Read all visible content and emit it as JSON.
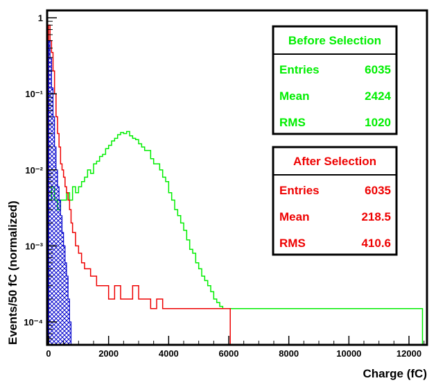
{
  "chart_data": {
    "type": "histogram",
    "xlabel": "Charge (fC)",
    "ylabel": "Events/50 fC (normalized)",
    "xlim": [
      0,
      12600
    ],
    "ylim": [
      5e-05,
      1.25
    ],
    "yscale": "log",
    "bin_width": 50,
    "grid": false,
    "x_ticks": [
      0,
      2000,
      4000,
      6000,
      8000,
      10000,
      12000
    ],
    "x_tick_labels": [
      "0",
      "2000",
      "4000",
      "6000",
      "8000",
      "10000",
      "12000"
    ],
    "y_ticks": [
      0.0001,
      0.001,
      0.01,
      0.1,
      1
    ],
    "y_tick_labels": [
      "10⁻⁴",
      "10⁻³",
      "10⁻²",
      "10⁻¹",
      "1"
    ],
    "series": [
      {
        "name": "Before Selection",
        "color": "#00ee00",
        "x": [
          0,
          100,
          200,
          300,
          400,
          500,
          600,
          700,
          800,
          900,
          1000,
          1100,
          1200,
          1300,
          1400,
          1500,
          1600,
          1700,
          1800,
          1900,
          2000,
          2100,
          2200,
          2300,
          2400,
          2500,
          2600,
          2700,
          2800,
          2900,
          3000,
          3100,
          3200,
          3300,
          3400,
          3500,
          3600,
          3700,
          3800,
          3900,
          4000,
          4100,
          4200,
          4300,
          4400,
          4500,
          4600,
          4700,
          4800,
          4900,
          5000,
          5100,
          5200,
          5300,
          5400,
          5500,
          5600,
          5700,
          5800,
          5900,
          6000,
          6200,
          6400,
          6600,
          6800,
          7000,
          7200,
          7600,
          8000,
          8600,
          10000,
          10400,
          11000,
          12400
        ],
        "y": [
          0.004,
          0.006,
          0.004,
          0.003,
          0.004,
          0.004,
          0.005,
          0.004,
          0.006,
          0.005,
          0.006,
          0.007,
          0.008,
          0.01,
          0.009,
          0.012,
          0.013,
          0.015,
          0.016,
          0.019,
          0.021,
          0.024,
          0.026,
          0.029,
          0.031,
          0.03,
          0.032,
          0.028,
          0.026,
          0.025,
          0.022,
          0.02,
          0.018,
          0.018,
          0.014,
          0.012,
          0.012,
          0.01,
          0.008,
          0.007,
          0.005,
          0.004,
          0.003,
          0.0025,
          0.002,
          0.0016,
          0.0012,
          0.0009,
          0.0008,
          0.0006,
          0.0005,
          0.0004,
          0.00035,
          0.0003,
          0.00025,
          0.0002,
          0.00018,
          0.00016,
          0.00015,
          0.00015,
          0.00015,
          0.00015,
          0.00015,
          0.00015,
          0.00015,
          0.00015,
          0.00015,
          0.00015,
          0.00015,
          0.00015,
          0.00015,
          0.00015,
          0.00015,
          0.00015
        ]
      },
      {
        "name": "After Selection",
        "color": "#ee0000",
        "x": [
          0,
          50,
          100,
          150,
          200,
          250,
          300,
          350,
          400,
          450,
          500,
          550,
          600,
          650,
          700,
          750,
          800,
          900,
          1000,
          1100,
          1200,
          1400,
          1600,
          1800,
          2000,
          2200,
          2400,
          2600,
          2800,
          3000,
          3200,
          3400,
          3600,
          3800,
          4000,
          4200,
          4400,
          4600,
          4800,
          5000,
          5200,
          5400,
          5600,
          6000
        ],
        "y": [
          0.8,
          0.5,
          0.35,
          0.2,
          0.1,
          0.05,
          0.03,
          0.02,
          0.012,
          0.01,
          0.008,
          0.006,
          0.005,
          0.004,
          0.003,
          0.002,
          0.0015,
          0.001,
          0.0008,
          0.0006,
          0.0005,
          0.0004,
          0.0003,
          0.0003,
          0.0002,
          0.0003,
          0.0002,
          0.0002,
          0.0003,
          0.0002,
          0.0002,
          0.00015,
          0.0002,
          0.00015,
          0.00015,
          0.00015,
          0.00015,
          0.00015,
          0.00015,
          0.00015,
          0.00015,
          0.00015,
          0.00015,
          0.00015
        ]
      },
      {
        "name": "",
        "color": "#0000cc",
        "x": [
          0,
          50,
          100,
          150,
          200,
          250,
          300,
          350,
          400,
          450,
          500,
          550,
          600,
          650,
          700
        ],
        "y": [
          0.5,
          0.3,
          0.12,
          0.05,
          0.02,
          0.01,
          0.006,
          0.004,
          0.0025,
          0.0015,
          0.001,
          0.0006,
          0.0004,
          0.0002,
          0.0001
        ]
      }
    ]
  },
  "stats_boxes": [
    {
      "title": "Before Selection",
      "color": "#00ee00",
      "rows": [
        {
          "label": "Entries",
          "value": "6035"
        },
        {
          "label": "Mean",
          "value": "2424"
        },
        {
          "label": "RMS",
          "value": "1020"
        }
      ]
    },
    {
      "title": "After Selection",
      "color": "#ee0000",
      "rows": [
        {
          "label": "Entries",
          "value": "6035"
        },
        {
          "label": "Mean",
          "value": "218.5"
        },
        {
          "label": "RMS",
          "value": "410.6"
        }
      ]
    }
  ]
}
